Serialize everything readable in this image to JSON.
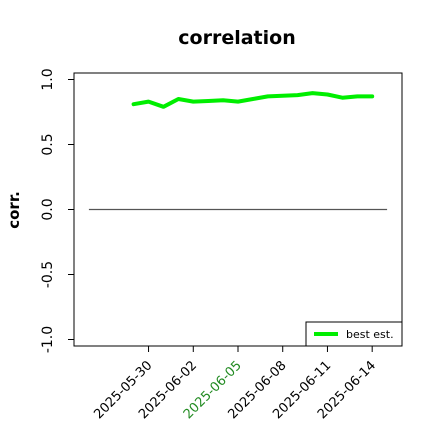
{
  "chart_data": {
    "type": "line",
    "title": "correlation",
    "ylabel": "corr.",
    "xlabel": "",
    "ylim": [
      -1.05,
      1.05
    ],
    "xlim": [
      "2025-05-25",
      "2025-06-16"
    ],
    "yticks": [
      "1.0",
      "0.5",
      "0.0",
      "-0.5",
      "-1.0"
    ],
    "ytick_values": [
      1.0,
      0.5,
      0.0,
      -0.5,
      -1.0
    ],
    "xticks": [
      "2025-05-30",
      "2025-06-02",
      "2025-06-05",
      "2025-06-08",
      "2025-06-11",
      "2025-06-14"
    ],
    "xtick_values": [
      "2025-05-30",
      "2025-06-02",
      "2025-06-05",
      "2025-06-08",
      "2025-06-11",
      "2025-06-14"
    ],
    "highlighted_xtick": "2025-06-05",
    "highlight_color": "#228B22",
    "grid": false,
    "legend_position": "bottom-right",
    "series": [
      {
        "name": "best est.",
        "color": "#00ee00",
        "x": [
          "2025-05-29",
          "2025-05-30",
          "2025-05-31",
          "2025-06-01",
          "2025-06-02",
          "2025-06-03",
          "2025-06-04",
          "2025-06-05",
          "2025-06-06",
          "2025-06-07",
          "2025-06-08",
          "2025-06-09",
          "2025-06-10",
          "2025-06-11",
          "2025-06-12",
          "2025-06-13",
          "2025-06-14"
        ],
        "values": [
          0.81,
          0.83,
          0.79,
          0.85,
          0.83,
          0.835,
          0.84,
          0.83,
          0.85,
          0.87,
          0.875,
          0.88,
          0.895,
          0.885,
          0.86,
          0.87,
          0.87
        ]
      }
    ],
    "reference_line": {
      "y": 0.0,
      "x_start": "2025-05-26",
      "x_end": "2025-06-15",
      "color": "#555555"
    }
  }
}
